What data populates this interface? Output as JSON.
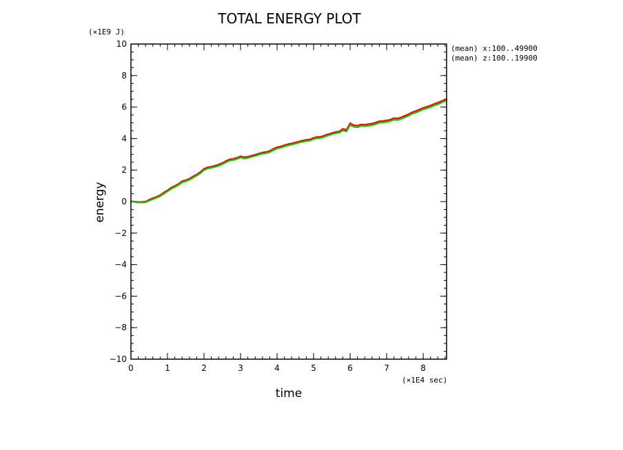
{
  "chart_data": {
    "type": "line",
    "title": "TOTAL ENERGY PLOT",
    "xlabel": "time",
    "ylabel": "energy",
    "x_unit": "(×1E4 sec)",
    "y_unit": "(×1E9 J)",
    "annotations": [
      "(mean) x:100..49900",
      "(mean) z:100..19900"
    ],
    "xlim": [
      0,
      8.64
    ],
    "ylim": [
      -10,
      10
    ],
    "x_ticks": [
      0,
      1,
      2,
      3,
      4,
      5,
      6,
      7,
      8
    ],
    "y_ticks": [
      -10,
      -8,
      -6,
      -4,
      -2,
      0,
      2,
      4,
      6,
      8,
      10
    ],
    "x_minor_step": 0.2,
    "y_minor_step": 0.5,
    "grid": false,
    "series": [
      {
        "color": "#ff0000",
        "x": [
          0,
          0.1,
          0.2,
          0.3,
          0.4,
          0.5,
          0.6,
          0.7,
          0.8,
          0.9,
          1.0,
          1.1,
          1.2,
          1.3,
          1.4,
          1.5,
          1.6,
          1.7,
          1.8,
          1.9,
          2.0,
          2.1,
          2.2,
          2.3,
          2.4,
          2.5,
          2.6,
          2.7,
          2.8,
          2.9,
          3.0,
          3.1,
          3.2,
          3.3,
          3.4,
          3.5,
          3.6,
          3.7,
          3.8,
          3.9,
          4.0,
          4.1,
          4.2,
          4.3,
          4.4,
          4.5,
          4.6,
          4.7,
          4.8,
          4.9,
          5.0,
          5.1,
          5.2,
          5.3,
          5.4,
          5.5,
          5.6,
          5.7,
          5.8,
          5.9,
          6.0,
          6.1,
          6.2,
          6.3,
          6.4,
          6.5,
          6.6,
          6.7,
          6.8,
          6.9,
          7.0,
          7.1,
          7.2,
          7.3,
          7.4,
          7.5,
          7.6,
          7.7,
          7.8,
          7.9,
          8.0,
          8.1,
          8.2,
          8.3,
          8.4,
          8.5,
          8.64
        ],
        "y": [
          0.02,
          0.0,
          -0.02,
          -0.02,
          0.0,
          0.12,
          0.22,
          0.3,
          0.42,
          0.58,
          0.72,
          0.88,
          1.0,
          1.12,
          1.3,
          1.36,
          1.45,
          1.6,
          1.72,
          1.88,
          2.08,
          2.18,
          2.22,
          2.28,
          2.35,
          2.45,
          2.58,
          2.68,
          2.72,
          2.78,
          2.88,
          2.82,
          2.85,
          2.92,
          2.98,
          3.05,
          3.12,
          3.15,
          3.22,
          3.35,
          3.45,
          3.5,
          3.58,
          3.65,
          3.7,
          3.75,
          3.82,
          3.88,
          3.92,
          3.95,
          4.05,
          4.1,
          4.12,
          4.2,
          4.28,
          4.35,
          4.42,
          4.45,
          4.62,
          4.55,
          4.98,
          4.85,
          4.82,
          4.9,
          4.88,
          4.92,
          4.95,
          5.02,
          5.1,
          5.12,
          5.15,
          5.2,
          5.3,
          5.28,
          5.35,
          5.45,
          5.55,
          5.68,
          5.75,
          5.85,
          5.95,
          6.02,
          6.1,
          6.2,
          6.28,
          6.38,
          6.5
        ]
      },
      {
        "color": "#00cc00",
        "x": [
          0,
          0.1,
          0.2,
          0.3,
          0.4,
          0.5,
          0.6,
          0.7,
          0.8,
          0.9,
          1.0,
          1.1,
          1.2,
          1.3,
          1.4,
          1.5,
          1.6,
          1.7,
          1.8,
          1.9,
          2.0,
          2.1,
          2.2,
          2.3,
          2.4,
          2.5,
          2.6,
          2.7,
          2.8,
          2.9,
          3.0,
          3.1,
          3.2,
          3.3,
          3.4,
          3.5,
          3.6,
          3.7,
          3.8,
          3.9,
          4.0,
          4.1,
          4.2,
          4.3,
          4.4,
          4.5,
          4.6,
          4.7,
          4.8,
          4.9,
          5.0,
          5.1,
          5.2,
          5.3,
          5.4,
          5.5,
          5.6,
          5.7,
          5.8,
          5.9,
          6.0,
          6.1,
          6.2,
          6.3,
          6.4,
          6.5,
          6.6,
          6.7,
          6.8,
          6.9,
          7.0,
          7.1,
          7.2,
          7.3,
          7.4,
          7.5,
          7.6,
          7.7,
          7.8,
          7.9,
          8.0,
          8.1,
          8.2,
          8.3,
          8.4,
          8.5,
          8.64
        ],
        "y": [
          0.0,
          -0.02,
          -0.05,
          -0.06,
          -0.04,
          0.06,
          0.15,
          0.24,
          0.35,
          0.5,
          0.65,
          0.8,
          0.93,
          1.05,
          1.22,
          1.29,
          1.38,
          1.52,
          1.65,
          1.8,
          2.0,
          2.1,
          2.15,
          2.2,
          2.27,
          2.37,
          2.5,
          2.6,
          2.64,
          2.7,
          2.8,
          2.74,
          2.77,
          2.84,
          2.9,
          2.97,
          3.04,
          3.07,
          3.14,
          3.27,
          3.37,
          3.42,
          3.5,
          3.57,
          3.62,
          3.67,
          3.74,
          3.8,
          3.84,
          3.87,
          3.97,
          4.02,
          4.04,
          4.12,
          4.2,
          4.27,
          4.34,
          4.37,
          4.52,
          4.45,
          4.86,
          4.74,
          4.72,
          4.8,
          4.78,
          4.82,
          4.85,
          4.92,
          5.0,
          5.02,
          5.05,
          5.1,
          5.2,
          5.18,
          5.25,
          5.35,
          5.45,
          5.58,
          5.65,
          5.75,
          5.85,
          5.92,
          6.0,
          6.1,
          6.18,
          6.28,
          6.42
        ]
      }
    ]
  }
}
